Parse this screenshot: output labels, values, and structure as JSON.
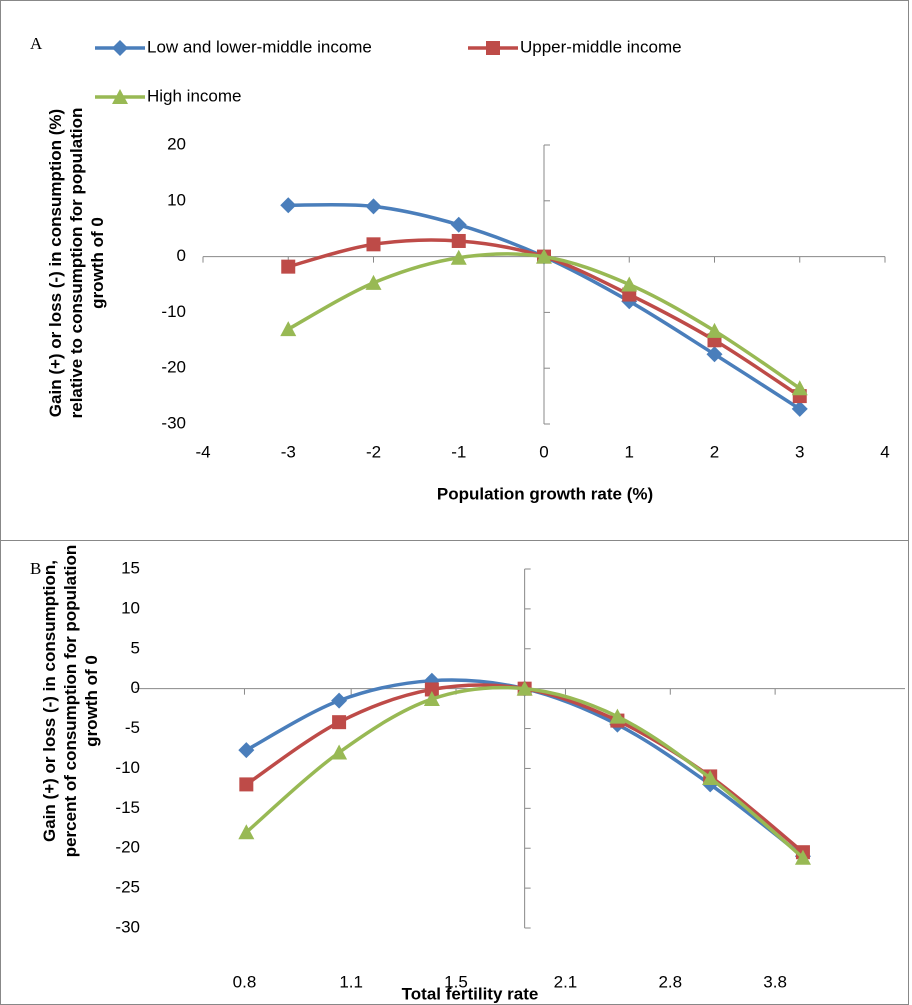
{
  "chart_data": [
    {
      "type": "line",
      "panel": "A",
      "smooth": true,
      "legend": "top",
      "ylabel": "Gain (+) or loss (-) in consumption (%) relative to consumption for population growth of 0",
      "xlabel": "Population growth rate (%)",
      "x": [
        -3,
        -2,
        -1,
        0,
        1,
        2,
        3
      ],
      "xlim": [
        -4,
        4
      ],
      "xticks": [
        -4,
        -3,
        -2,
        -1,
        0,
        1,
        2,
        3,
        4
      ],
      "ylim": [
        -30,
        20
      ],
      "yticks": [
        -30,
        -20,
        -10,
        0,
        10,
        20
      ],
      "series": [
        {
          "name": "Low and lower-middle income",
          "color": "#4a7ebb",
          "marker": "diamond",
          "values": [
            9.2,
            9,
            5.7,
            0,
            -8,
            -17.5,
            -27.3
          ]
        },
        {
          "name": "Upper-middle income",
          "color": "#be4b48",
          "marker": "square",
          "values": [
            -1.8,
            2.2,
            2.8,
            0,
            -6.8,
            -15,
            -25
          ]
        },
        {
          "name": "High income",
          "color": "#98b954",
          "marker": "triangle",
          "values": [
            -13,
            -4.7,
            -0.2,
            0,
            -5,
            -13.3,
            -23.6
          ]
        }
      ]
    },
    {
      "type": "line",
      "panel": "B",
      "smooth": true,
      "ylabel": "Gain (+) or loss (-) in consumption, percent of consumption for population growth of 0",
      "xlabel": "Total fertility rate",
      "x": [
        -3,
        -2,
        -1,
        0,
        1,
        2,
        3
      ],
      "xlim": [
        -4.2,
        4.1
      ],
      "xticks": [
        {
          "value": -3.02,
          "label": "0.8"
        },
        {
          "value": -1.87,
          "label": "1.1"
        },
        {
          "value": -0.74,
          "label": "1.5"
        },
        {
          "value": 0.44,
          "label": "2.1"
        },
        {
          "value": 1.57,
          "label": "2.8"
        },
        {
          "value": 2.7,
          "label": "3.8"
        }
      ],
      "ylim": [
        -30,
        15
      ],
      "yticks": [
        -30,
        -25,
        -20,
        -15,
        -10,
        -5,
        0,
        5,
        10,
        15
      ],
      "series": [
        {
          "color": "#4a7ebb",
          "marker": "diamond",
          "values": [
            -7.7,
            -1.5,
            1,
            0,
            -4.5,
            -12,
            -21
          ]
        },
        {
          "color": "#be4b48",
          "marker": "square",
          "values": [
            -12,
            -4.2,
            -0.1,
            0,
            -4,
            -11,
            -20.5
          ]
        },
        {
          "color": "#98b954",
          "marker": "triangle",
          "values": [
            -18,
            -8,
            -1.3,
            0,
            -3.5,
            -11.2,
            -21.2
          ]
        }
      ]
    }
  ]
}
